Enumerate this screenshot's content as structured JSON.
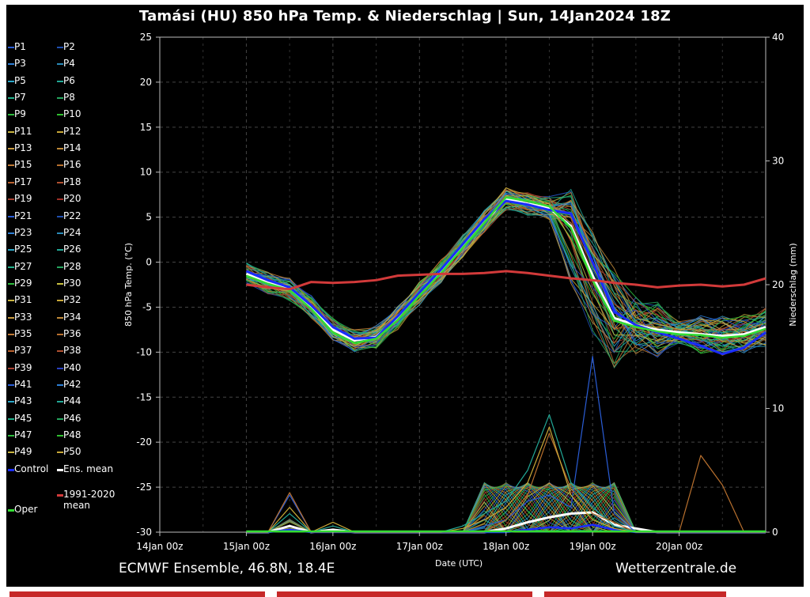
{
  "title": "Tamási  (HU)  850 hPa Temp. & Niederschlag | Sun, 14Jan2024 18Z",
  "footer": {
    "source": "ECMWF Ensemble, 46.8N, 18.4E",
    "site": "Wetterzentrale.de"
  },
  "legend": {
    "members": [
      {
        "label": "P1",
        "color": "#2a5dd6"
      },
      {
        "label": "P2",
        "color": "#1f4fb0"
      },
      {
        "label": "P3",
        "color": "#2d7fd6"
      },
      {
        "label": "P4",
        "color": "#2a8ab8"
      },
      {
        "label": "P5",
        "color": "#2aa6c8"
      },
      {
        "label": "P6",
        "color": "#22a896"
      },
      {
        "label": "P7",
        "color": "#22b08a"
      },
      {
        "label": "P8",
        "color": "#25a55e"
      },
      {
        "label": "P9",
        "color": "#2dbb3d"
      },
      {
        "label": "P10",
        "color": "#30c030"
      },
      {
        "label": "P11",
        "color": "#c8b440"
      },
      {
        "label": "P12",
        "color": "#c8a838"
      },
      {
        "label": "P13",
        "color": "#c89a40"
      },
      {
        "label": "P14",
        "color": "#c08a38"
      },
      {
        "label": "P15",
        "color": "#c07a36"
      },
      {
        "label": "P16",
        "color": "#b8702e"
      },
      {
        "label": "P17",
        "color": "#b8602e"
      },
      {
        "label": "P18",
        "color": "#b05030"
      },
      {
        "label": "P19",
        "color": "#a84030"
      },
      {
        "label": "P20",
        "color": "#a03028"
      },
      {
        "label": "P21",
        "color": "#2a5dd6"
      },
      {
        "label": "P22",
        "color": "#1f4fb0"
      },
      {
        "label": "P23",
        "color": "#2d7fd6"
      },
      {
        "label": "P24",
        "color": "#2a8ab8"
      },
      {
        "label": "P25",
        "color": "#2aa6c8"
      },
      {
        "label": "P26",
        "color": "#22a896"
      },
      {
        "label": "P27",
        "color": "#22b08a"
      },
      {
        "label": "P28",
        "color": "#25a55e"
      },
      {
        "label": "P29",
        "color": "#2dbb3d"
      },
      {
        "label": "P30",
        "color": "#c8c040"
      },
      {
        "label": "P31",
        "color": "#c8b440"
      },
      {
        "label": "P32",
        "color": "#c8a838"
      },
      {
        "label": "P33",
        "color": "#c89a40"
      },
      {
        "label": "P34",
        "color": "#c08a38"
      },
      {
        "label": "P35",
        "color": "#c07a36"
      },
      {
        "label": "P36",
        "color": "#b8702e"
      },
      {
        "label": "P37",
        "color": "#b8602e"
      },
      {
        "label": "P38",
        "color": "#b05030"
      },
      {
        "label": "P39",
        "color": "#a84030"
      },
      {
        "label": "P40",
        "color": "#2a40c0"
      },
      {
        "label": "P41",
        "color": "#2a5dd6"
      },
      {
        "label": "P42",
        "color": "#2d7fd6"
      },
      {
        "label": "P43",
        "color": "#2aa6c8"
      },
      {
        "label": "P44",
        "color": "#22a896"
      },
      {
        "label": "P45",
        "color": "#22b08a"
      },
      {
        "label": "P46",
        "color": "#25a55e"
      },
      {
        "label": "P47",
        "color": "#2dbb3d"
      },
      {
        "label": "P48",
        "color": "#30c030"
      },
      {
        "label": "P49",
        "color": "#c8b440"
      },
      {
        "label": "P50",
        "color": "#c8a838"
      }
    ],
    "control": {
      "label": "Control",
      "color": "#1a2cff"
    },
    "ens_mean": {
      "label": "Ens. mean",
      "color": "#ffffff"
    },
    "climate": {
      "label": "1991-2020\nmean",
      "color": "#d23a3a"
    },
    "oper": {
      "label": "Oper",
      "color": "#33dd33"
    }
  },
  "chart_data": {
    "type": "line",
    "xlabel": "Date (UTC)",
    "ylabel": "850 hPa Temp. (°C)",
    "y2label": "Niederschlag (mm)",
    "ylim": [
      -30,
      25
    ],
    "y2lim": [
      0,
      40
    ],
    "yticks": [
      25,
      20,
      15,
      10,
      5,
      0,
      -5,
      -10,
      -15,
      -20,
      -25,
      -30
    ],
    "y2ticks": [
      40,
      30,
      20,
      10,
      0
    ],
    "xticks": [
      "14Jan 00z",
      "15Jan 00z",
      "16Jan 00z",
      "17Jan 00z",
      "18Jan 00z",
      "19Jan 00z",
      "20Jan 00z"
    ],
    "grid": true,
    "x_hours": [
      24,
      30,
      36,
      42,
      48,
      54,
      60,
      66,
      72,
      78,
      84,
      90,
      96,
      102,
      108,
      114,
      120,
      126,
      132,
      138,
      144,
      150,
      156,
      162,
      168
    ],
    "series": [
      {
        "name": "Ens. mean",
        "color": "#ffffff",
        "width": 3,
        "axis": "temp",
        "values": [
          -1.3,
          -2.3,
          -3.0,
          -5.0,
          -7.5,
          -8.7,
          -8.3,
          -6.2,
          -3.5,
          -1.0,
          1.8,
          4.5,
          7.0,
          6.5,
          6.0,
          4.0,
          -1.5,
          -6.2,
          -7.0,
          -7.5,
          -7.8,
          -8.0,
          -8.2,
          -8.0,
          -7.2
        ]
      },
      {
        "name": "Control",
        "color": "#1a2cff",
        "width": 3,
        "axis": "temp",
        "values": [
          -1.0,
          -2.0,
          -2.8,
          -4.8,
          -7.2,
          -8.5,
          -8.4,
          -6.0,
          -3.4,
          -0.8,
          2.0,
          4.8,
          6.8,
          6.4,
          5.8,
          5.4,
          0.0,
          -5.5,
          -7.0,
          -7.8,
          -8.5,
          -9.3,
          -10.2,
          -9.5,
          -7.8
        ]
      },
      {
        "name": "Oper",
        "color": "#33dd33",
        "width": 2.5,
        "axis": "temp",
        "values": [
          -1.5,
          -2.4,
          -3.1,
          -5.2,
          -7.8,
          -9.0,
          -8.5,
          -6.4,
          -3.7,
          -1.2,
          1.6,
          4.4,
          7.2,
          6.8,
          6.2,
          3.8,
          -2.0,
          -6.5,
          -7.2,
          -7.7,
          -8.0,
          -8.1,
          -8.4,
          -8.2,
          -7.4
        ]
      },
      {
        "name": "1991-2020 mean",
        "color": "#d23a3a",
        "width": 3,
        "axis": "temp",
        "values": [
          -2.5,
          -2.8,
          -3.0,
          -2.2,
          -2.3,
          -2.2,
          -2.0,
          -1.5,
          -1.4,
          -1.3,
          -1.3,
          -1.2,
          -1.0,
          -1.2,
          -1.5,
          -1.8,
          -2.0,
          -2.3,
          -2.5,
          -2.8,
          -2.6,
          -2.5,
          -2.7,
          -2.5,
          -1.8
        ]
      },
      {
        "name": "Ens. mean precip",
        "color": "#ffffff",
        "width": 3,
        "axis": "precip",
        "values": [
          0.0,
          0.0,
          0.5,
          0.0,
          0.2,
          0.0,
          0.0,
          0.0,
          0.0,
          0.0,
          0.0,
          0.0,
          0.3,
          0.8,
          1.2,
          1.5,
          1.6,
          0.6,
          0.3,
          0.0,
          0.0,
          0.0,
          0.0,
          0.0,
          0.0
        ]
      },
      {
        "name": "Control precip",
        "color": "#1a2cff",
        "width": 2.5,
        "axis": "precip",
        "values": [
          0.0,
          0.0,
          0.2,
          0.0,
          0.0,
          0.0,
          0.0,
          0.0,
          0.0,
          0.0,
          0.0,
          0.0,
          0.0,
          0.2,
          0.4,
          0.3,
          0.6,
          0.2,
          0.0,
          0.0,
          0.0,
          0.0,
          0.0,
          0.0,
          0.0
        ]
      },
      {
        "name": "P20 precip peak",
        "color": "#2a5dd6",
        "width": 1.2,
        "axis": "precip",
        "values": [
          0.0,
          0.0,
          3.0,
          0.0,
          0.0,
          0.0,
          0.0,
          0.0,
          0.0,
          0.0,
          0.0,
          0.5,
          1.0,
          2.5,
          3.0,
          2.0,
          14.2,
          1.5,
          0.0,
          0.0,
          0.0,
          0.0,
          0.0,
          0.0,
          0.0
        ]
      },
      {
        "name": "P28 precip peak",
        "color": "#22a896",
        "width": 1.2,
        "axis": "precip",
        "values": [
          0.0,
          0.0,
          1.5,
          0.0,
          0.5,
          0.0,
          0.0,
          0.0,
          0.0,
          0.0,
          0.5,
          1.5,
          2.5,
          5.0,
          9.5,
          4.0,
          2.0,
          0.5,
          0.0,
          0.0,
          0.0,
          0.0,
          0.0,
          0.0,
          0.0
        ]
      },
      {
        "name": "P16 precip peak",
        "color": "#b8702e",
        "width": 1.2,
        "axis": "precip",
        "values": [
          0.0,
          0.0,
          3.2,
          0.0,
          0.0,
          0.0,
          0.0,
          0.0,
          0.0,
          0.0,
          0.0,
          0.0,
          1.0,
          3.0,
          8.0,
          3.5,
          1.5,
          0.8,
          0.0,
          0.0,
          0.0,
          6.2,
          3.8,
          0.0,
          0.0
        ]
      },
      {
        "name": "P12 precip peak",
        "color": "#c8a838",
        "width": 1.2,
        "axis": "precip",
        "values": [
          0.0,
          0.0,
          2.0,
          0.0,
          0.8,
          0.0,
          0.0,
          0.0,
          0.0,
          0.0,
          0.3,
          1.0,
          2.0,
          4.0,
          8.5,
          3.0,
          1.0,
          0.3,
          0.0,
          0.0,
          0.0,
          0.0,
          0.0,
          0.0,
          0.0
        ]
      }
    ]
  }
}
